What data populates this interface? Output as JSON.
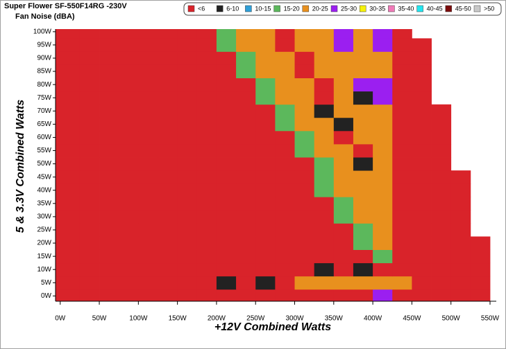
{
  "chart_data": {
    "type": "heatmap",
    "title": "Super Flower SF-550F14RG -230V",
    "subtitle": "Fan Noise (dBA)",
    "x_label": "+12V Combined Watts",
    "y_label": "5 & 3.3V Combined Watts",
    "legend": [
      "<6",
      "6-10",
      "10-15",
      "15-20",
      "20-25",
      "25-30",
      "30-35",
      "35-40",
      "40-45",
      "45-50",
      ">50"
    ],
    "legend_colors": [
      "#d9232a",
      "#222222",
      "#2f9fd8",
      "#5cb85c",
      "#e8901e",
      "#9b1ff0",
      "#f5f10a",
      "#f07ab8",
      "#22e6f0",
      "#7b0c0c",
      "#c8c8c8"
    ],
    "levels": [
      6,
      10,
      15,
      20,
      25,
      30,
      35,
      40,
      45,
      50
    ],
    "xlim": [
      -6,
      558
    ],
    "ylim": [
      -2,
      101
    ],
    "xticks": [
      {
        "value": 0,
        "label": "0W"
      },
      {
        "value": 50,
        "label": "50W"
      },
      {
        "value": 100,
        "label": "100W"
      },
      {
        "value": 150,
        "label": "150W"
      },
      {
        "value": 200,
        "label": "200W"
      },
      {
        "value": 250,
        "label": "250W"
      },
      {
        "value": 300,
        "label": "300W"
      },
      {
        "value": 350,
        "label": "350W"
      },
      {
        "value": 400,
        "label": "400W"
      },
      {
        "value": 450,
        "label": "450W"
      },
      {
        "value": 500,
        "label": "500W"
      },
      {
        "value": 550,
        "label": "550W"
      }
    ],
    "yticks": [
      {
        "value": 0,
        "label": "0W"
      },
      {
        "value": 5,
        "label": "5W"
      },
      {
        "value": 10,
        "label": "10W"
      },
      {
        "value": 15,
        "label": "15W"
      },
      {
        "value": 20,
        "label": "20W"
      },
      {
        "value": 25,
        "label": "25W"
      },
      {
        "value": 30,
        "label": "30W"
      },
      {
        "value": 35,
        "label": "35W"
      },
      {
        "value": 40,
        "label": "40W"
      },
      {
        "value": 45,
        "label": "45W"
      },
      {
        "value": 50,
        "label": "50W"
      },
      {
        "value": 55,
        "label": "55W"
      },
      {
        "value": 60,
        "label": "60W"
      },
      {
        "value": 65,
        "label": "65W"
      },
      {
        "value": 70,
        "label": "70W"
      },
      {
        "value": 75,
        "label": "75W"
      },
      {
        "value": 80,
        "label": "80W"
      },
      {
        "value": 85,
        "label": "85W"
      },
      {
        "value": 90,
        "label": "90W"
      },
      {
        "value": 95,
        "label": "95W"
      },
      {
        "value": 100,
        "label": "100W"
      }
    ],
    "x": [
      0,
      25,
      50,
      75,
      100,
      125,
      150,
      175,
      200,
      225,
      250,
      275,
      300,
      325,
      350,
      375,
      400,
      425,
      450,
      475,
      500,
      525
    ],
    "y": [
      0,
      5,
      10,
      15,
      20,
      25,
      30,
      35,
      40,
      45,
      50,
      55,
      60,
      65,
      70,
      75,
      80,
      85,
      90,
      95,
      100
    ],
    "z": [
      [
        3,
        3,
        3,
        3,
        3,
        3,
        3,
        3,
        3,
        3,
        3,
        3,
        3,
        3,
        3,
        3,
        27,
        3,
        3,
        3,
        3,
        3
      ],
      [
        3,
        3,
        3,
        3,
        3,
        3,
        3,
        3,
        8,
        3,
        8,
        3,
        22,
        22,
        22,
        22,
        22,
        22,
        3,
        3,
        3,
        3
      ],
      [
        3,
        3,
        3,
        3,
        3,
        3,
        3,
        3,
        3,
        3,
        3,
        3,
        3,
        8,
        3,
        8,
        3,
        3,
        3,
        3,
        3,
        3
      ],
      [
        3,
        3,
        3,
        3,
        3,
        3,
        3,
        3,
        3,
        3,
        3,
        3,
        3,
        3,
        3,
        3,
        17,
        3,
        3,
        3,
        3,
        3
      ],
      [
        3,
        3,
        3,
        3,
        3,
        3,
        3,
        3,
        3,
        3,
        3,
        3,
        3,
        3,
        3,
        17,
        22,
        3,
        3,
        3,
        3,
        3
      ],
      [
        3,
        3,
        3,
        3,
        3,
        3,
        3,
        3,
        3,
        3,
        3,
        3,
        3,
        3,
        3,
        17,
        22,
        3,
        3,
        3,
        3,
        null
      ],
      [
        3,
        3,
        3,
        3,
        3,
        3,
        3,
        3,
        3,
        3,
        3,
        3,
        3,
        3,
        17,
        22,
        22,
        3,
        3,
        3,
        3,
        null
      ],
      [
        3,
        3,
        3,
        3,
        3,
        3,
        3,
        3,
        3,
        3,
        3,
        3,
        3,
        3,
        17,
        22,
        22,
        3,
        3,
        3,
        3,
        null
      ],
      [
        3,
        3,
        3,
        3,
        3,
        3,
        3,
        3,
        3,
        3,
        3,
        3,
        3,
        17,
        22,
        22,
        22,
        3,
        3,
        3,
        3,
        null
      ],
      [
        3,
        3,
        3,
        3,
        3,
        3,
        3,
        3,
        3,
        3,
        3,
        3,
        3,
        17,
        22,
        22,
        22,
        3,
        3,
        3,
        3,
        null
      ],
      [
        3,
        3,
        3,
        3,
        3,
        3,
        3,
        3,
        3,
        3,
        3,
        3,
        3,
        17,
        22,
        8,
        22,
        3,
        3,
        3,
        null,
        null
      ],
      [
        3,
        3,
        3,
        3,
        3,
        3,
        3,
        3,
        3,
        3,
        3,
        3,
        17,
        22,
        22,
        3,
        22,
        3,
        3,
        3,
        null,
        null
      ],
      [
        3,
        3,
        3,
        3,
        3,
        3,
        3,
        3,
        3,
        3,
        3,
        3,
        17,
        22,
        3,
        22,
        22,
        3,
        3,
        3,
        null,
        null
      ],
      [
        3,
        3,
        3,
        3,
        3,
        3,
        3,
        3,
        3,
        3,
        3,
        17,
        22,
        22,
        8,
        22,
        22,
        3,
        3,
        3,
        null,
        null
      ],
      [
        3,
        3,
        3,
        3,
        3,
        3,
        3,
        3,
        3,
        3,
        3,
        17,
        22,
        8,
        22,
        22,
        22,
        3,
        3,
        3,
        null,
        null
      ],
      [
        3,
        3,
        3,
        3,
        3,
        3,
        3,
        3,
        3,
        3,
        17,
        22,
        22,
        3,
        22,
        8,
        27,
        3,
        3,
        null,
        null,
        null
      ],
      [
        3,
        3,
        3,
        3,
        3,
        3,
        3,
        3,
        3,
        3,
        17,
        22,
        22,
        3,
        22,
        27,
        27,
        3,
        3,
        null,
        null,
        null
      ],
      [
        3,
        3,
        3,
        3,
        3,
        3,
        3,
        3,
        3,
        17,
        22,
        22,
        3,
        22,
        22,
        22,
        22,
        3,
        3,
        null,
        null,
        null
      ],
      [
        3,
        3,
        3,
        3,
        3,
        3,
        3,
        3,
        3,
        17,
        22,
        22,
        3,
        22,
        22,
        22,
        22,
        3,
        3,
        null,
        null,
        null
      ],
      [
        3,
        3,
        3,
        3,
        3,
        3,
        3,
        3,
        17,
        22,
        22,
        3,
        22,
        22,
        27,
        22,
        27,
        3,
        3,
        null,
        null,
        null
      ],
      [
        3,
        3,
        3,
        3,
        3,
        3,
        3,
        3,
        17,
        22,
        22,
        3,
        22,
        22,
        27,
        22,
        27,
        3,
        null,
        null,
        null,
        null
      ]
    ]
  }
}
